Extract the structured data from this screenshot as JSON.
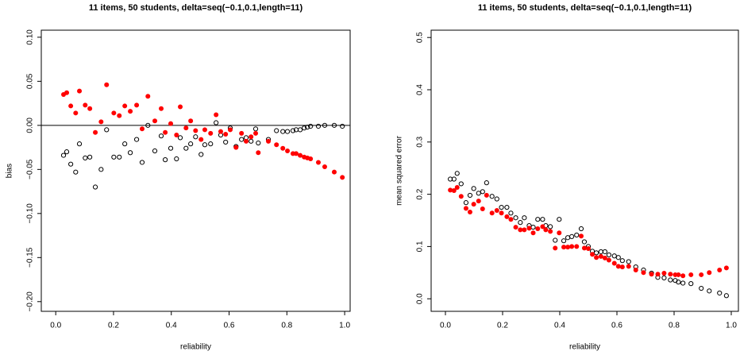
{
  "chart_data": [
    {
      "type": "scatter",
      "title": "11 items, 50 students, delta=seq(−0.1,0.1,length=11)",
      "xlabel": "reliability",
      "ylabel": "bias",
      "xlim": [
        -0.05,
        1.019
      ],
      "ylim": [
        -0.211,
        0.108
      ],
      "xticks": [
        {
          "value": 0,
          "label": "0.0"
        },
        {
          "value": 0.2,
          "label": "0.2"
        },
        {
          "value": 0.4,
          "label": "0.4"
        },
        {
          "value": 0.6,
          "label": "0.6"
        },
        {
          "value": 0.8,
          "label": "0.8"
        },
        {
          "value": 1,
          "label": "1.0"
        }
      ],
      "yticks": [
        {
          "value": -0.2,
          "label": "−0.20"
        },
        {
          "value": -0.15,
          "label": "−0.15"
        },
        {
          "value": -0.1,
          "label": "−0.10"
        },
        {
          "value": -0.05,
          "label": "−0.05"
        },
        {
          "value": 0,
          "label": "0.00"
        },
        {
          "value": 0.05,
          "label": "0.05"
        },
        {
          "value": 0.1,
          "label": "0.10"
        }
      ],
      "hline": 0,
      "grid": false,
      "x": [
        0.027,
        0.038,
        0.052,
        0.069,
        0.082,
        0.102,
        0.118,
        0.137,
        0.157,
        0.176,
        0.201,
        0.22,
        0.239,
        0.258,
        0.28,
        0.299,
        0.319,
        0.343,
        0.365,
        0.379,
        0.398,
        0.418,
        0.431,
        0.451,
        0.467,
        0.484,
        0.503,
        0.516,
        0.536,
        0.555,
        0.571,
        0.588,
        0.604,
        0.624,
        0.643,
        0.659,
        0.676,
        0.692,
        0.701,
        0.736,
        0.764,
        0.786,
        0.802,
        0.821,
        0.832,
        0.846,
        0.86,
        0.871,
        0.882,
        0.909,
        0.931,
        0.964,
        0.992
      ],
      "series": [
        {
          "color": "#000000",
          "marker": "open",
          "values": [
            -0.034,
            -0.03,
            -0.044,
            -0.053,
            -0.021,
            -0.037,
            -0.036,
            -0.07,
            -0.05,
            -0.005,
            -0.036,
            -0.036,
            -0.021,
            -0.031,
            -0.016,
            -0.042,
            0.0,
            -0.029,
            -0.012,
            -0.039,
            -0.026,
            -0.038,
            -0.014,
            -0.026,
            -0.021,
            -0.013,
            -0.033,
            -0.022,
            -0.021,
            0.003,
            -0.011,
            -0.019,
            -0.003,
            -0.024,
            -0.016,
            -0.014,
            -0.018,
            -0.004,
            -0.02,
            -0.016,
            -0.006,
            -0.007,
            -0.007,
            -0.006,
            -0.005,
            -0.005,
            -0.003,
            -0.002,
            -0.001,
            -0.001,
            0.0,
            0.0,
            -0.001
          ]
        },
        {
          "color": "#ff0000",
          "marker": "filled",
          "values": [
            0.035,
            0.037,
            0.022,
            0.014,
            0.039,
            0.023,
            0.019,
            -0.008,
            0.004,
            0.046,
            0.014,
            0.011,
            0.022,
            0.016,
            0.023,
            -0.004,
            0.033,
            0.005,
            0.019,
            -0.008,
            0.002,
            -0.011,
            0.021,
            -0.003,
            0.005,
            -0.006,
            -0.016,
            -0.005,
            -0.009,
            0.012,
            -0.007,
            -0.01,
            -0.005,
            -0.025,
            -0.009,
            -0.018,
            -0.013,
            -0.009,
            -0.031,
            -0.018,
            -0.022,
            -0.026,
            -0.029,
            -0.032,
            -0.032,
            -0.034,
            -0.036,
            -0.037,
            -0.038,
            -0.042,
            -0.047,
            -0.053,
            -0.059
          ]
        }
      ]
    },
    {
      "type": "scatter",
      "title": "11 items, 50 students, delta=seq(−0.1,0.1,length=11)",
      "xlabel": "reliability",
      "ylabel": "mean squared error",
      "xlim": [
        -0.05,
        1.025
      ],
      "ylim": [
        -0.024,
        0.514
      ],
      "xticks": [
        {
          "value": 0,
          "label": "0.0"
        },
        {
          "value": 0.2,
          "label": "0.2"
        },
        {
          "value": 0.4,
          "label": "0.4"
        },
        {
          "value": 0.6,
          "label": "0.6"
        },
        {
          "value": 0.8,
          "label": "0.8"
        },
        {
          "value": 1,
          "label": "1.0"
        }
      ],
      "yticks": [
        {
          "value": 0,
          "label": "0.0"
        },
        {
          "value": 0.1,
          "label": "0.1"
        },
        {
          "value": 0.2,
          "label": "0.2"
        },
        {
          "value": 0.3,
          "label": "0.3"
        },
        {
          "value": 0.4,
          "label": "0.4"
        },
        {
          "value": 0.5,
          "label": "0.5"
        }
      ],
      "grid": false,
      "x": [
        0.017,
        0.03,
        0.041,
        0.055,
        0.072,
        0.086,
        0.099,
        0.116,
        0.13,
        0.144,
        0.163,
        0.18,
        0.196,
        0.215,
        0.229,
        0.246,
        0.262,
        0.276,
        0.293,
        0.307,
        0.323,
        0.34,
        0.351,
        0.367,
        0.384,
        0.398,
        0.414,
        0.428,
        0.442,
        0.459,
        0.475,
        0.486,
        0.5,
        0.514,
        0.528,
        0.544,
        0.558,
        0.572,
        0.591,
        0.605,
        0.619,
        0.641,
        0.666,
        0.693,
        0.721,
        0.743,
        0.765,
        0.787,
        0.804,
        0.815,
        0.831,
        0.859,
        0.895,
        0.923,
        0.959,
        0.983
      ],
      "series": [
        {
          "color": "#000000",
          "marker": "open",
          "values": [
            0.229,
            0.229,
            0.24,
            0.22,
            0.184,
            0.198,
            0.211,
            0.202,
            0.205,
            0.222,
            0.196,
            0.191,
            0.175,
            0.175,
            0.164,
            0.155,
            0.146,
            0.155,
            0.14,
            0.137,
            0.152,
            0.152,
            0.14,
            0.138,
            0.112,
            0.152,
            0.111,
            0.117,
            0.119,
            0.122,
            0.134,
            0.109,
            0.1,
            0.091,
            0.088,
            0.09,
            0.09,
            0.084,
            0.082,
            0.079,
            0.073,
            0.071,
            0.061,
            0.055,
            0.049,
            0.041,
            0.04,
            0.036,
            0.035,
            0.032,
            0.03,
            0.029,
            0.02,
            0.015,
            0.011,
            0.006
          ]
        },
        {
          "color": "#ff0000",
          "marker": "filled",
          "values": [
            0.208,
            0.207,
            0.213,
            0.196,
            0.173,
            0.166,
            0.181,
            0.187,
            0.172,
            0.198,
            0.164,
            0.169,
            0.164,
            0.157,
            0.152,
            0.137,
            0.132,
            0.132,
            0.135,
            0.126,
            0.134,
            0.138,
            0.132,
            0.129,
            0.097,
            0.126,
            0.099,
            0.099,
            0.1,
            0.1,
            0.12,
            0.097,
            0.096,
            0.085,
            0.079,
            0.081,
            0.078,
            0.074,
            0.068,
            0.062,
            0.061,
            0.062,
            0.055,
            0.05,
            0.047,
            0.047,
            0.049,
            0.047,
            0.046,
            0.046,
            0.044,
            0.046,
            0.046,
            0.05,
            0.055,
            0.059
          ]
        }
      ]
    }
  ]
}
